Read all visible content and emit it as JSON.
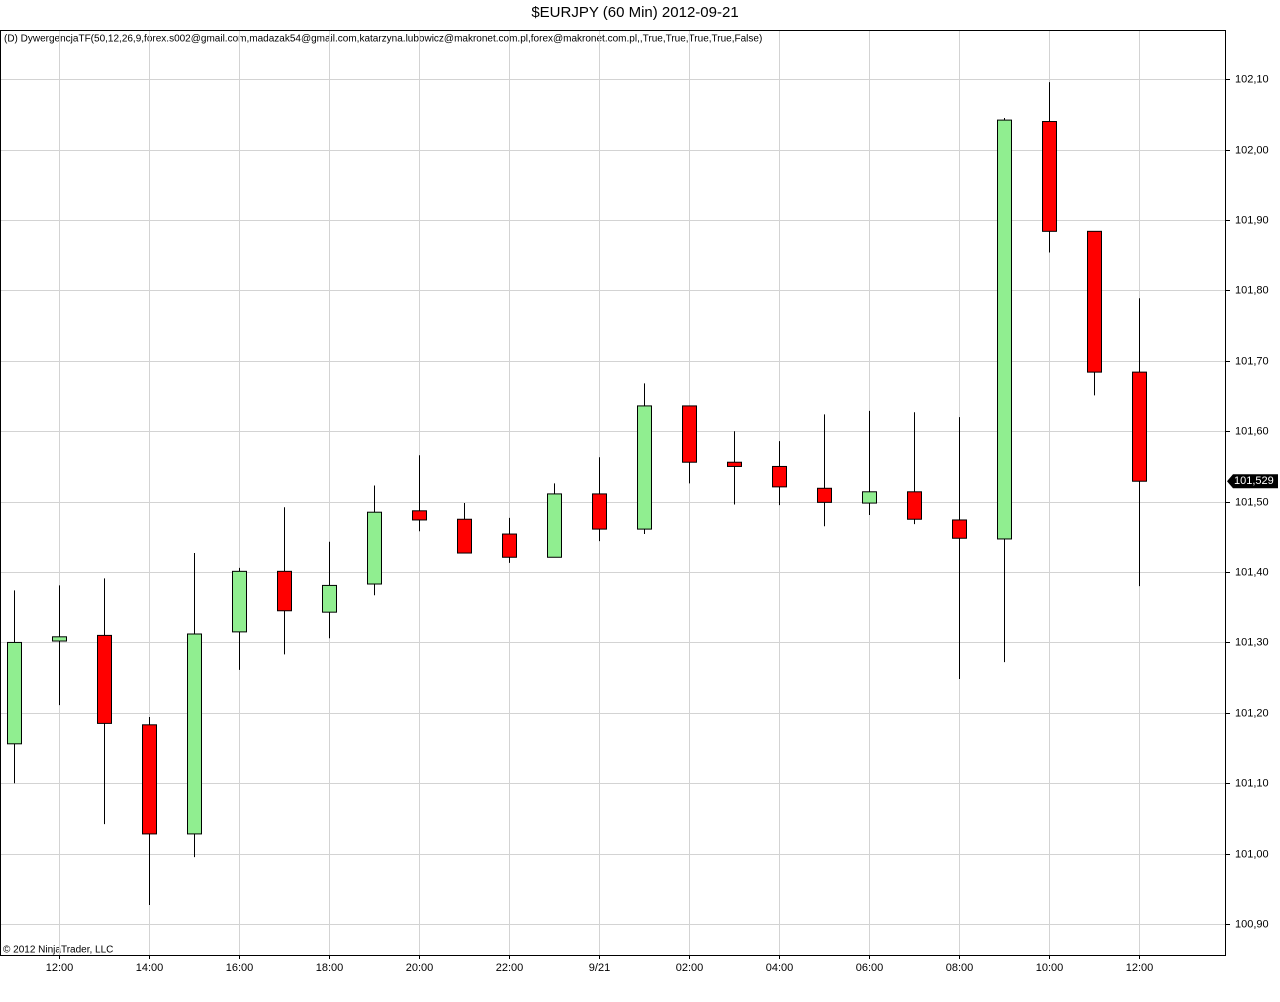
{
  "chart_data": {
    "type": "candlestick",
    "title": "$EURJPY (60 Min)  2012-09-21",
    "indicator": "(D)  DywergencjaTF(50,12,26,9,forex.s002@gmail.com,madazak54@gmail.com,katarzyna.lubowicz@makronet.com.pl,forex@makronet.com.pl,,True,True,True,True,False)",
    "copyright": "© 2012 NinjaTrader, LLC",
    "categories": [
      null,
      "12:00",
      null,
      "14:00",
      null,
      "16:00",
      null,
      "18:00",
      null,
      "20:00",
      null,
      "22:00",
      null,
      "9/21",
      null,
      "02:00",
      null,
      "04:00",
      null,
      "06:00",
      null,
      "08:00",
      null,
      "10:00",
      null,
      "12:00"
    ],
    "open": [
      101.156,
      101.302,
      101.31,
      101.183,
      101.028,
      101.315,
      101.401,
      101.343,
      101.383,
      101.487,
      101.475,
      101.454,
      101.421,
      101.511,
      101.461,
      101.636,
      101.556,
      101.55,
      101.519,
      101.498,
      101.514,
      101.474,
      101.447,
      102.04,
      101.884,
      101.684
    ],
    "high": [
      101.374,
      101.381,
      101.391,
      101.194,
      101.427,
      101.406,
      101.492,
      101.443,
      101.523,
      101.566,
      101.498,
      101.477,
      101.526,
      101.563,
      101.668,
      101.636,
      101.6,
      101.586,
      101.624,
      101.629,
      101.627,
      101.62,
      102.045,
      102.096,
      101.884,
      101.789
    ],
    "low": [
      101.1,
      101.211,
      101.042,
      100.927,
      100.995,
      101.261,
      101.283,
      101.306,
      101.367,
      101.458,
      101.427,
      101.413,
      101.421,
      101.444,
      101.454,
      101.526,
      101.496,
      101.495,
      101.465,
      101.481,
      101.468,
      101.248,
      101.272,
      101.854,
      101.651,
      101.38
    ],
    "close": [
      101.3,
      101.308,
      101.185,
      101.028,
      101.312,
      101.401,
      101.345,
      101.381,
      101.485,
      101.474,
      101.427,
      101.421,
      101.511,
      101.461,
      101.636,
      101.556,
      101.55,
      101.521,
      101.499,
      101.514,
      101.475,
      101.448,
      102.042,
      101.884,
      101.684,
      101.529
    ],
    "up_color": "#90ee90",
    "down_color": "#ff0000",
    "last_price": {
      "value": 101.529,
      "label": "101,529"
    },
    "ylim": [
      100.856,
      102.17
    ],
    "yticks": [
      {
        "value": 100.9,
        "label": "100,90"
      },
      {
        "value": 101.0,
        "label": "101,00"
      },
      {
        "value": 101.1,
        "label": "101,10"
      },
      {
        "value": 101.2,
        "label": "101,20"
      },
      {
        "value": 101.3,
        "label": "101,30"
      },
      {
        "value": 101.4,
        "label": "101,40"
      },
      {
        "value": 101.5,
        "label": "101,50"
      },
      {
        "value": 101.6,
        "label": "101,60"
      },
      {
        "value": 101.7,
        "label": "101,70"
      },
      {
        "value": 101.8,
        "label": "101,80"
      },
      {
        "value": 101.9,
        "label": "101,90"
      },
      {
        "value": 102.0,
        "label": "102,00"
      },
      {
        "value": 102.1,
        "label": "102,10"
      }
    ],
    "grid": true
  }
}
